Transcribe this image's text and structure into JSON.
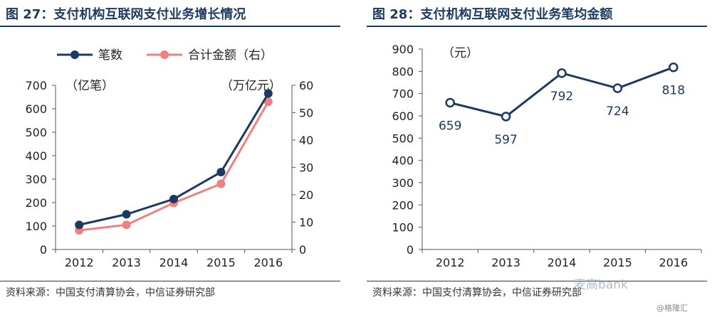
{
  "left_panel": {
    "title": "图 27：支付机构互联网支付业务增长情况",
    "source": "资料来源：中国支付清算协会，中信证券研究部"
  },
  "right_panel": {
    "title": "图 28：支付机构互联网支付业务笔均金额",
    "source": "资料来源：中国支付清算协会，中信证券研究部"
  },
  "watermark": {
    "text": "麦高bank",
    "corner": "@格隆汇"
  },
  "colors": {
    "navy": "#1b3a63",
    "pink": "#f08080",
    "title": "#1f3a5f"
  },
  "chart_data": [
    {
      "type": "line",
      "categories": [
        "2012",
        "2013",
        "2014",
        "2015",
        "2016"
      ],
      "series": [
        {
          "name": "笔数",
          "axis": "left",
          "values": [
            105,
            150,
            215,
            330,
            665
          ],
          "color": "#1b3a63",
          "marker": "filled-circle"
        },
        {
          "name": "合计金额（右）",
          "axis": "right",
          "values": [
            7,
            9,
            17,
            24,
            54
          ],
          "color": "#f08080",
          "marker": "filled-circle"
        }
      ],
      "ylabel_left": "（亿笔）",
      "ylabel_right": "（万亿元）",
      "ylim_left": [
        0,
        700
      ],
      "ylim_right": [
        0,
        60
      ],
      "yticks_left": [
        "0",
        "100",
        "200",
        "300",
        "400",
        "500",
        "600",
        "700"
      ],
      "yticks_right": [
        "0",
        "10",
        "20",
        "30",
        "40",
        "50",
        "60"
      ],
      "legend": "top",
      "grid": false
    },
    {
      "type": "line",
      "categories": [
        "2012",
        "2013",
        "2014",
        "2015",
        "2016"
      ],
      "series": [
        {
          "values": [
            659,
            597,
            792,
            724,
            818
          ],
          "color": "#1b3a63",
          "marker": "hollow-circle"
        }
      ],
      "data_labels": [
        "659",
        "597",
        "792",
        "724",
        "818"
      ],
      "ylabel": "（元）",
      "ylim": [
        0,
        900
      ],
      "yticks": [
        "0",
        "100",
        "200",
        "300",
        "400",
        "500",
        "600",
        "700",
        "800",
        "900"
      ],
      "grid": false
    }
  ]
}
